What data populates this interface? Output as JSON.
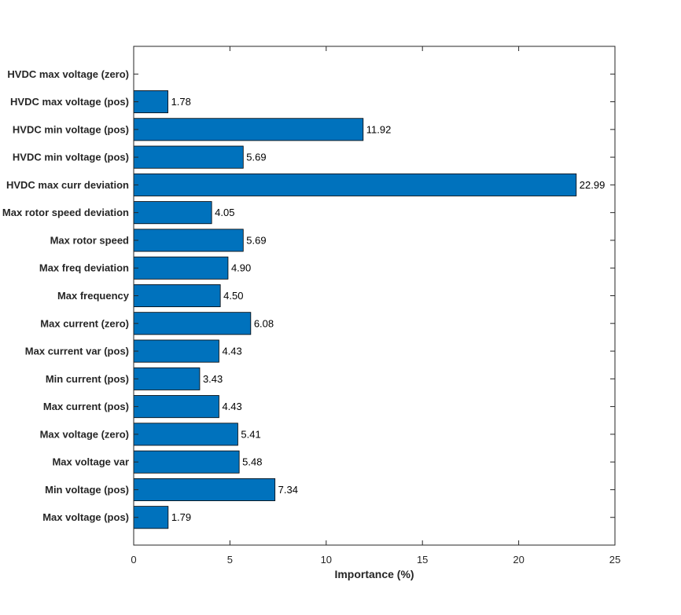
{
  "chart_data": {
    "type": "bar",
    "orientation": "horizontal",
    "title": "",
    "xlabel": "Importance (%)",
    "ylabel": "",
    "xlim": [
      0,
      25
    ],
    "xticks": [
      0,
      5,
      10,
      15,
      20,
      25
    ],
    "grid": false,
    "bar_color": "#0072BD",
    "bar_edge_color": "#000000",
    "categories": [
      "HVDC max voltage (zero)",
      "HVDC max voltage (pos)",
      "HVDC min voltage (pos)",
      "HVDC min voltage (pos)",
      "HVDC max curr deviation",
      "Max rotor speed deviation",
      "Max rotor speed",
      "Max freq deviation",
      "Max frequency",
      "Max current (zero)",
      "Max current var (pos)",
      "Min current (pos)",
      "Max current (pos)",
      "Max voltage (zero)",
      "Max voltage var",
      "Min voltage (pos)",
      "Max voltage (pos)"
    ],
    "values": [
      0,
      1.78,
      11.92,
      5.69,
      22.99,
      4.05,
      5.69,
      4.9,
      4.5,
      6.08,
      4.43,
      3.43,
      4.43,
      5.41,
      5.48,
      7.34,
      1.79
    ],
    "data_labels": [
      "",
      "1.78",
      "11.92",
      "5.69",
      "22.99",
      "4.05",
      "5.69",
      "4.90",
      "4.50",
      "6.08",
      "4.43",
      "3.43",
      "4.43",
      "5.41",
      "5.48",
      "7.34",
      "1.79"
    ]
  }
}
